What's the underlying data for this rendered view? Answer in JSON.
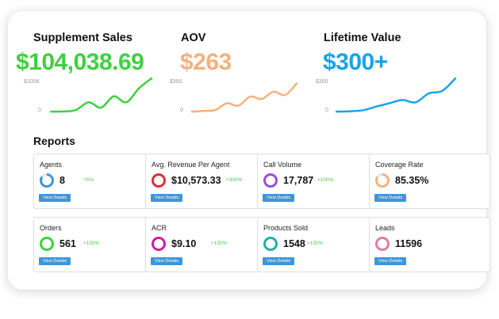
{
  "metrics": [
    {
      "title": "Supplement Sales",
      "value": "$104,038.69",
      "color": "#3fd03f",
      "y_top_label": "$100K",
      "y_zero_label": "0",
      "trend": [
        0,
        0.5,
        5,
        28,
        12,
        46,
        28,
        70,
        100
      ]
    },
    {
      "title": "AOV",
      "value": "$263",
      "color": "#f4b07e",
      "y_top_label": "$300",
      "y_zero_label": "0",
      "trend": [
        0,
        2,
        5,
        25,
        18,
        45,
        38,
        60,
        50,
        85
      ]
    },
    {
      "title": "Lifetime Value",
      "value": "$300+",
      "color": "#1aa3e8",
      "y_top_label": "$300",
      "y_zero_label": "0",
      "trend": [
        0,
        1,
        4,
        15,
        25,
        35,
        28,
        55,
        62,
        100
      ]
    }
  ],
  "reports_title": "Reports",
  "button_label": "View Details",
  "reports": [
    {
      "label": "Agents",
      "value": "8",
      "delta": "+5%",
      "ring_color": "#3f95d6",
      "ring_fill": 0.85
    },
    {
      "label": "Avg. Revenue Per Agent",
      "value": "$10,573.33",
      "delta": "+300%",
      "ring_color": "#d9323a",
      "ring_fill": 1
    },
    {
      "label": "Call Volume",
      "value": "17,787",
      "delta": "+100%",
      "ring_color": "#9a4fd8",
      "ring_fill": 1
    },
    {
      "label": "Coverage Rate",
      "value": "85.35%",
      "delta": "",
      "ring_color": "#f4b07e",
      "ring_fill": 0.8535
    },
    {
      "label": "Orders",
      "value": "561",
      "delta": "+100%",
      "ring_color": "#3fd03f",
      "ring_fill": 1
    },
    {
      "label": "ACR",
      "value": "$9.10",
      "delta": "+100%",
      "ring_color": "#cc1f9e",
      "ring_fill": 1
    },
    {
      "label": "Products Sold",
      "value": "1548",
      "delta": "+100%",
      "ring_color": "#21b0a8",
      "ring_fill": 1
    },
    {
      "label": "Leads",
      "value": "11596",
      "delta": "",
      "ring_color": "#dd7fa3",
      "ring_fill": 1
    }
  ]
}
